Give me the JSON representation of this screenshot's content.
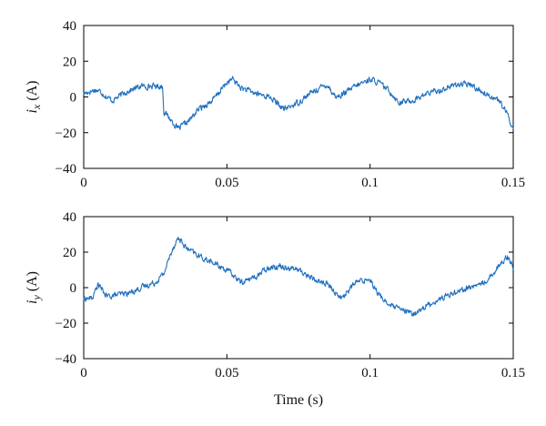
{
  "chart_data": [
    {
      "type": "line",
      "ylabel": {
        "symbol": "i",
        "subscript": "x",
        "unit": "(A)"
      },
      "xlabel": "",
      "xlim": [
        0,
        0.15
      ],
      "ylim": [
        -40,
        40
      ],
      "xticks": [
        0,
        0.05,
        0.1,
        0.15
      ],
      "xtick_labels": [
        "0",
        "0.05",
        "0.1",
        "0.15"
      ],
      "yticks": [
        40,
        20,
        0,
        -20,
        -40
      ],
      "ytick_labels": [
        "40",
        "20",
        "0",
        "−20",
        "−40"
      ],
      "grid": false,
      "line_color": "#1f6fbf",
      "noise_amplitude": 2.6,
      "series": [
        {
          "x": [
            0,
            0.002,
            0.004,
            0.006,
            0.008,
            0.01,
            0.015,
            0.02,
            0.025,
            0.0275,
            0.028,
            0.03,
            0.033,
            0.037,
            0.04,
            0.045,
            0.05,
            0.052,
            0.055,
            0.06,
            0.065,
            0.07,
            0.075,
            0.08,
            0.085,
            0.088,
            0.09,
            0.095,
            0.1,
            0.103,
            0.107,
            0.11,
            0.115,
            0.12,
            0.125,
            0.13,
            0.135,
            0.14,
            0.143,
            0.145,
            0.148,
            0.15
          ],
          "y": [
            2,
            3,
            4,
            3,
            0,
            -2,
            3,
            6,
            6,
            6,
            -8,
            -12,
            -18,
            -13,
            -7,
            -2,
            8,
            10,
            5,
            2,
            0,
            -7,
            -3,
            3,
            7,
            0,
            1,
            6,
            10,
            8,
            3,
            -3,
            -2,
            2,
            4,
            7,
            7,
            2,
            0,
            -2,
            -10,
            -18
          ]
        }
      ]
    },
    {
      "type": "line",
      "ylabel": {
        "symbol": "i",
        "subscript": "y",
        "unit": "(A)"
      },
      "xlabel": "Time (s)",
      "xlim": [
        0,
        0.15
      ],
      "ylim": [
        -40,
        40
      ],
      "xticks": [
        0,
        0.05,
        0.1,
        0.15
      ],
      "xtick_labels": [
        "0",
        "0.05",
        "0.1",
        "0.15"
      ],
      "yticks": [
        40,
        20,
        0,
        -20,
        -40
      ],
      "ytick_labels": [
        "40",
        "20",
        "0",
        "−20",
        "−40"
      ],
      "grid": false,
      "line_color": "#1f6fbf",
      "noise_amplitude": 2.6,
      "series": [
        {
          "x": [
            0,
            0.003,
            0.005,
            0.008,
            0.012,
            0.016,
            0.02,
            0.025,
            0.028,
            0.031,
            0.033,
            0.036,
            0.04,
            0.045,
            0.05,
            0.055,
            0.06,
            0.065,
            0.07,
            0.075,
            0.08,
            0.085,
            0.09,
            0.095,
            0.1,
            0.103,
            0.107,
            0.11,
            0.115,
            0.12,
            0.125,
            0.13,
            0.135,
            0.14,
            0.145,
            0.148,
            0.15
          ],
          "y": [
            -6,
            -6,
            2,
            -5,
            -4,
            -3,
            0,
            3,
            8,
            22,
            28,
            22,
            18,
            14,
            10,
            3,
            6,
            12,
            12,
            10,
            5,
            2,
            -6,
            3,
            5,
            -4,
            -10,
            -12,
            -15,
            -10,
            -6,
            -2,
            0,
            3,
            12,
            18,
            12
          ]
        }
      ]
    }
  ]
}
